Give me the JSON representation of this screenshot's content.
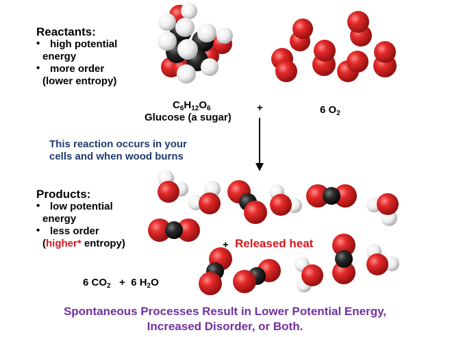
{
  "reactants": {
    "heading": "Reactants:",
    "bullet_glyph": "•",
    "b1_line1": "high potential",
    "b1_line2": "energy",
    "b2_line1": "more order",
    "b2_line2": "(lower entropy)"
  },
  "glucose": {
    "c": "C",
    "c_sub": "6",
    "h": "H",
    "h_sub": "12",
    "o": "O",
    "o_sub": "6",
    "name": "Glucose (a sugar)"
  },
  "plus1": "+",
  "oxygen": {
    "coef": "6 O",
    "sub": "2"
  },
  "note": {
    "line1": "This reaction occurs in your",
    "line2": "cells and when wood burns"
  },
  "products": {
    "heading": "Products:",
    "bullet_glyph": "•",
    "b1_line1": "low potential",
    "b1_line2": "energy",
    "b2_line1": "less order",
    "b2_line2_open": "(",
    "b2_line2_higher": "higher*",
    "b2_line2_rest": " entropy)"
  },
  "released": {
    "plus": "+",
    "label": "Released heat"
  },
  "equation": {
    "co2": "6 CO",
    "co2_sub": "2",
    "plus": "+",
    "h2o_a": "6 H",
    "h2o_sub": "2",
    "h2o_b": "O"
  },
  "footer": {
    "line1": "Spontaneous Processes Result in Lower Potential Energy,",
    "line2": "Increased Disorder, or Both."
  },
  "colors": {
    "oxygen": "#d6161c",
    "hydrogen": "#f2f2f2",
    "carbon": "#2a2a2a",
    "note": "#1f3b6e",
    "footer": "#7030a0",
    "highlight": "#d6161c"
  },
  "icons": [
    "down-arrow-icon"
  ]
}
